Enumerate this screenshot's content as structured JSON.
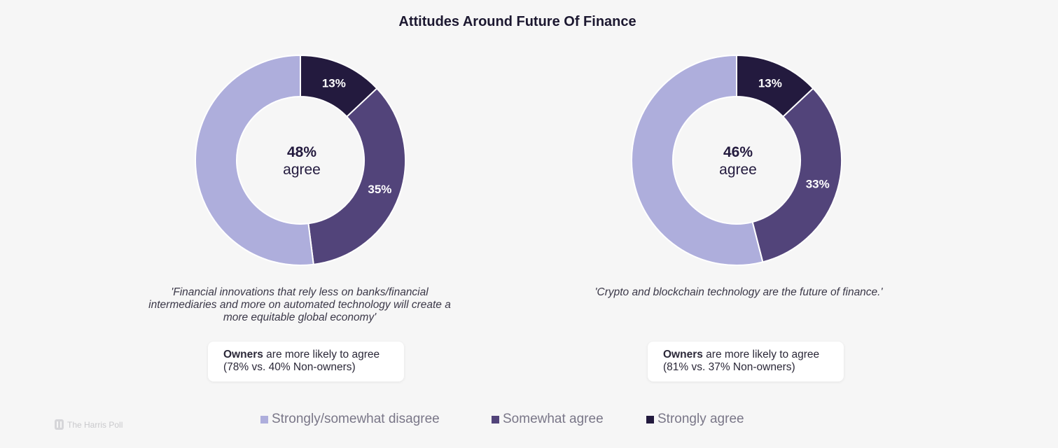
{
  "title": "Attitudes Around Future Of Finance",
  "colors": {
    "disagree": "#aeaedc",
    "somewhat": "#52447a",
    "strongly": "#231a3e"
  },
  "chart_data": [
    {
      "type": "pie",
      "variant": "donut",
      "center_value": "48%",
      "center_label": "agree",
      "labels": [
        "Strongly agree",
        "Somewhat agree",
        "Strongly/somewhat disagree"
      ],
      "values": [
        13,
        35,
        52
      ],
      "data_labels": [
        "13%",
        "35%",
        ""
      ],
      "statement": "'Financial innovations that rely less on banks/financial intermediaries and more on automated technology will create a more equitable global economy'",
      "note_bold": "Owners",
      "note_rest": " are more likely to agree",
      "note_line2": "(78% vs. 40% Non-owners)"
    },
    {
      "type": "pie",
      "variant": "donut",
      "center_value": "46%",
      "center_label": "agree",
      "labels": [
        "Strongly agree",
        "Somewhat agree",
        "Strongly/somewhat disagree"
      ],
      "values": [
        13,
        33,
        54
      ],
      "data_labels": [
        "13%",
        "33%",
        ""
      ],
      "statement": "'Crypto and blockchain technology are the future of finance.'",
      "note_bold": "Owners",
      "note_rest": " are more likely to agree",
      "note_line2": "(81% vs. 37% Non-owners)"
    }
  ],
  "legend": [
    {
      "label": "Strongly/somewhat disagree",
      "color": "#aeaedc"
    },
    {
      "label": "Somewhat agree",
      "color": "#52447a"
    },
    {
      "label": "Strongly agree",
      "color": "#231a3e"
    }
  ],
  "brand": {
    "text": "The Harris Poll",
    "icon": "harris-poll-logo-icon"
  }
}
